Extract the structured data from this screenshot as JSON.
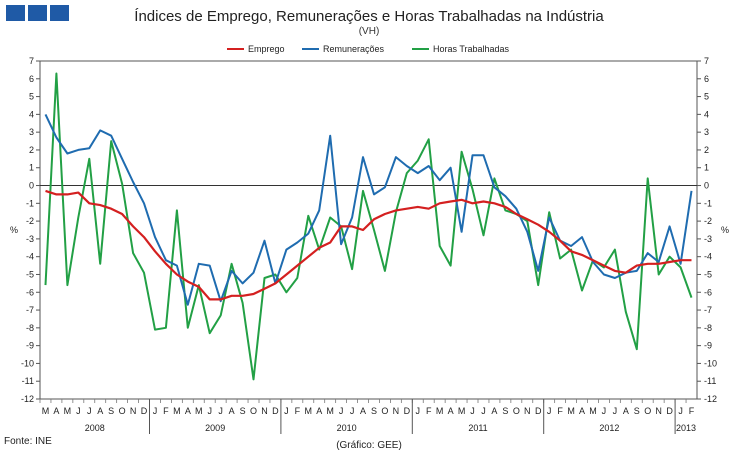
{
  "header": {
    "title": "Índices de Emprego, Remunerações e Horas Trabalhadas na Indústria",
    "subtitle": "(VH)"
  },
  "footer": {
    "source": "Fonte: INE",
    "credit": "(Gráfico: GEE)"
  },
  "colors": {
    "emprego": "#d42020",
    "remuneracoes": "#1f6cb0",
    "horas": "#22a045",
    "logo": "#1f5aa6"
  },
  "chart_data": {
    "type": "line",
    "title": "Índices de Emprego, Remunerações e Horas Trabalhadas na Indústria",
    "subtitle": "(VH)",
    "ylabel": "%",
    "ylabel_right": "%",
    "ylim": [
      -12,
      7
    ],
    "yticks": [
      7,
      6,
      5,
      4,
      3,
      2,
      1,
      0,
      -1,
      -2,
      -3,
      -4,
      -5,
      -6,
      -7,
      -8,
      -9,
      -10,
      -11,
      -12
    ],
    "grid": false,
    "legend": "top-center",
    "x": [
      "M",
      "A",
      "M",
      "J",
      "J",
      "A",
      "S",
      "O",
      "N",
      "D",
      "J",
      "F",
      "M",
      "A",
      "M",
      "J",
      "J",
      "A",
      "S",
      "O",
      "N",
      "D",
      "J",
      "F",
      "M",
      "A",
      "M",
      "J",
      "J",
      "A",
      "S",
      "O",
      "N",
      "D",
      "J",
      "F",
      "M",
      "A",
      "M",
      "J",
      "J",
      "A",
      "S",
      "O",
      "N",
      "D",
      "J",
      "F",
      "M",
      "A",
      "M",
      "J",
      "J",
      "A",
      "S",
      "O",
      "N",
      "D",
      "J",
      "F"
    ],
    "years": [
      {
        "label": "2008",
        "start": 0,
        "end": 9
      },
      {
        "label": "2009",
        "start": 10,
        "end": 21
      },
      {
        "label": "2010",
        "start": 22,
        "end": 33
      },
      {
        "label": "2011",
        "start": 34,
        "end": 45
      },
      {
        "label": "2012",
        "start": 46,
        "end": 57
      },
      {
        "label": "2013",
        "start": 58,
        "end": 59
      }
    ],
    "series": [
      {
        "name": "Emprego",
        "values": [
          -0.3,
          -0.5,
          -0.5,
          -0.4,
          -1.0,
          -1.1,
          -1.3,
          -1.6,
          -2.3,
          -2.9,
          -3.7,
          -4.4,
          -5.0,
          -5.4,
          -5.7,
          -6.4,
          -6.4,
          -6.2,
          -6.2,
          -6.1,
          -5.8,
          -5.5,
          -5.0,
          -4.5,
          -4.0,
          -3.5,
          -3.2,
          -2.3,
          -2.3,
          -2.5,
          -1.9,
          -1.6,
          -1.4,
          -1.3,
          -1.2,
          -1.3,
          -1.0,
          -0.9,
          -0.8,
          -1.0,
          -0.9,
          -1.0,
          -1.2,
          -1.6,
          -1.9,
          -2.2,
          -2.6,
          -3.1,
          -3.7,
          -3.9,
          -4.2,
          -4.5,
          -4.8,
          -4.9,
          -4.5,
          -4.4,
          -4.4,
          -4.3,
          -4.2,
          -4.2
        ]
      },
      {
        "name": "Remunerações",
        "values": [
          4.0,
          2.7,
          1.8,
          2.0,
          2.1,
          3.1,
          2.8,
          1.5,
          0.2,
          -1.0,
          -2.9,
          -4.2,
          -4.5,
          -6.7,
          -4.4,
          -4.5,
          -6.5,
          -4.8,
          -5.5,
          -4.9,
          -3.1,
          -5.5,
          -3.6,
          -3.2,
          -2.7,
          -1.4,
          2.8,
          -3.3,
          -1.8,
          1.6,
          -0.5,
          -0.1,
          1.6,
          1.1,
          0.7,
          1.1,
          0.3,
          1.0,
          -2.6,
          1.7,
          1.7,
          -0.1,
          -0.6,
          -1.3,
          -2.6,
          -4.8,
          -1.8,
          -3.1,
          -3.4,
          -2.9,
          -4.3,
          -5.0,
          -5.2,
          -4.9,
          -4.8,
          -3.8,
          -4.3,
          -2.3,
          -4.4,
          -0.3
        ]
      },
      {
        "name": "Horas Trabalhadas",
        "values": [
          -5.6,
          6.3,
          -5.6,
          -1.8,
          1.5,
          -4.4,
          2.5,
          0.1,
          -3.8,
          -4.9,
          -8.1,
          -8.0,
          -1.4,
          -8.0,
          -5.6,
          -8.3,
          -7.3,
          -4.4,
          -6.6,
          -10.9,
          -5.2,
          -5.0,
          -6.0,
          -5.2,
          -1.7,
          -3.6,
          -1.8,
          -2.3,
          -4.7,
          -0.3,
          -2.5,
          -4.8,
          -1.5,
          0.7,
          1.4,
          2.6,
          -3.4,
          -4.5,
          1.9,
          -0.2,
          -2.8,
          0.4,
          -1.4,
          -1.6,
          -2.0,
          -5.6,
          -1.5,
          -4.1,
          -3.6,
          -5.9,
          -4.2,
          -4.6,
          -3.6,
          -7.1,
          -9.2,
          0.4,
          -5.0,
          -4.0,
          -4.6,
          -6.3
        ]
      }
    ]
  }
}
